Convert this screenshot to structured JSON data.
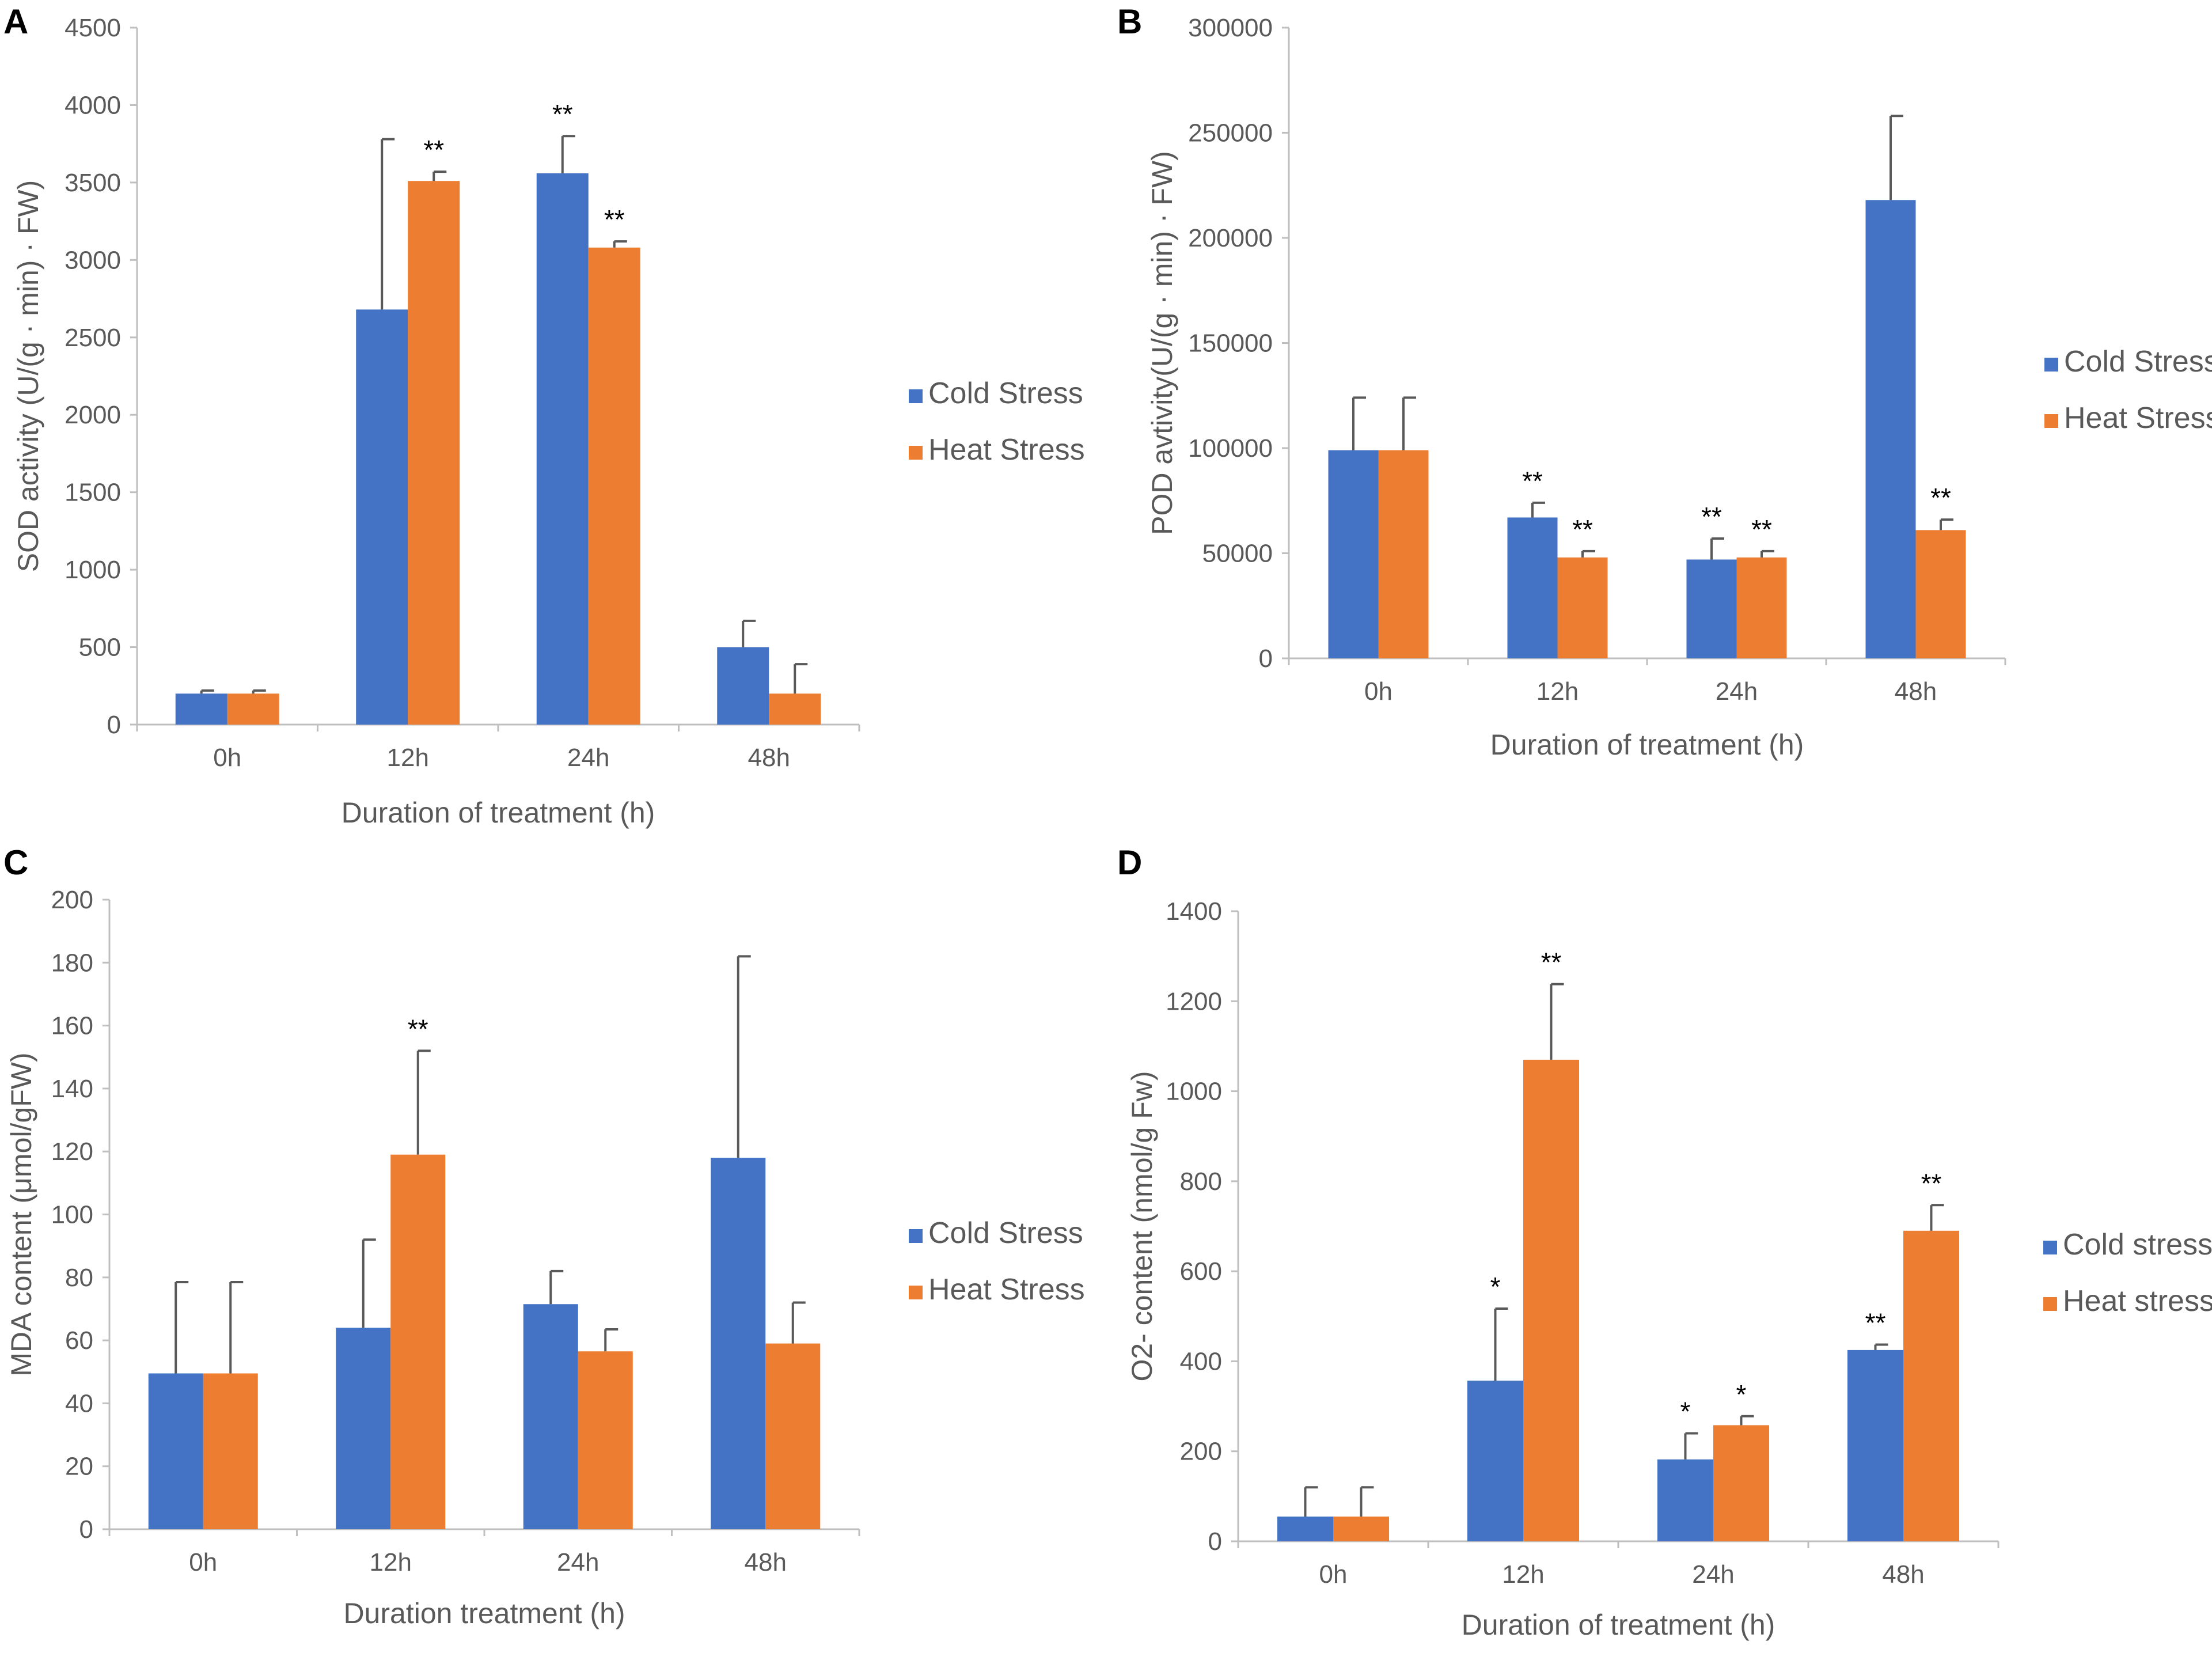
{
  "colors": {
    "cold": "#4472C4",
    "heat": "#ED7D31",
    "axis": "#BFBFBF",
    "error": "#595959"
  },
  "chart_data": [
    {
      "type": "bar",
      "panel": "A",
      "categories": [
        "0h",
        "12h",
        "24h",
        "48h"
      ],
      "series": [
        {
          "name": "Cold Stress",
          "values": [
            200,
            2680,
            3560,
            500
          ],
          "errors": [
            20,
            1100,
            240,
            170
          ],
          "sig": [
            "",
            "",
            "**",
            ""
          ]
        },
        {
          "name": "Heat Stress",
          "values": [
            200,
            3510,
            3080,
            200
          ],
          "errors": [
            20,
            60,
            40,
            190
          ],
          "sig": [
            "",
            "**",
            "**",
            ""
          ]
        }
      ],
      "xlabel": "Duration of treatment (h)",
      "ylabel": "SOD activity  (U/(g · min) · FW)",
      "ylim": [
        0,
        4500
      ],
      "yticks": [
        0,
        500,
        1000,
        1500,
        2000,
        2500,
        3000,
        3500,
        4000,
        4500
      ],
      "ytick_labels": [
        "0",
        "500",
        "1000",
        "1500",
        "2000",
        "2500",
        "3000",
        "3500",
        "4000",
        "4500"
      ]
    },
    {
      "type": "bar",
      "panel": "B",
      "categories": [
        "0h",
        "12h",
        "24h",
        "48h"
      ],
      "series": [
        {
          "name": "Cold Stress",
          "values": [
            99000,
            67000,
            47000,
            218000
          ],
          "errors": [
            25000,
            7000,
            10000,
            40000
          ],
          "sig": [
            "",
            "**",
            "**",
            ""
          ]
        },
        {
          "name": "Heat Stress",
          "values": [
            99000,
            48000,
            48000,
            61000
          ],
          "errors": [
            25000,
            3000,
            3000,
            5000
          ],
          "sig": [
            "",
            "**",
            "**",
            "**"
          ]
        }
      ],
      "xlabel": "Duration of treatment (h)",
      "ylabel": "POD avtivity(U/(g · min) · FW)",
      "ylim": [
        0,
        300000
      ],
      "yticks": [
        0,
        50000,
        100000,
        150000,
        200000,
        250000,
        300000
      ],
      "ytick_labels": [
        "0",
        "50000",
        "100000",
        "150000",
        "200000",
        "250000",
        "300000"
      ]
    },
    {
      "type": "bar",
      "panel": "C",
      "categories": [
        "0h",
        "12h",
        "24h",
        "48h"
      ],
      "series": [
        {
          "name": "Cold Stress",
          "values": [
            49.5,
            64,
            71.5,
            118
          ],
          "errors": [
            29,
            28,
            10.5,
            64
          ],
          "sig": [
            "",
            "",
            "",
            ""
          ]
        },
        {
          "name": "Heat Stress",
          "values": [
            49.5,
            119,
            56.5,
            59
          ],
          "errors": [
            29,
            33,
            7,
            13
          ],
          "sig": [
            "",
            "**",
            "",
            ""
          ]
        }
      ],
      "xlabel": "Duration treatment (h)",
      "ylabel": "MDA content (μmol/gFW)",
      "ylim": [
        0,
        200
      ],
      "yticks": [
        0,
        20,
        40,
        60,
        80,
        100,
        120,
        140,
        160,
        180,
        200
      ],
      "ytick_labels": [
        "0",
        "20",
        "40",
        "60",
        "80",
        "100",
        "120",
        "140",
        "160",
        "180",
        "200"
      ]
    },
    {
      "type": "bar",
      "panel": "D",
      "categories": [
        "0h",
        "12h",
        "24h",
        "48h"
      ],
      "series": [
        {
          "name": "Cold stress",
          "values": [
            55,
            357,
            182,
            425
          ],
          "errors": [
            65,
            160,
            58,
            12
          ],
          "sig": [
            "",
            "*",
            "*",
            "**"
          ]
        },
        {
          "name": "Heat stress",
          "values": [
            55,
            1070,
            258,
            690
          ],
          "errors": [
            65,
            168,
            20,
            57
          ],
          "sig": [
            "",
            "**",
            "*",
            "**"
          ]
        }
      ],
      "xlabel": "Duration of treatment (h)",
      "ylabel": "O2- content (nmol/g Fw)",
      "ylim": [
        0,
        1400
      ],
      "yticks": [
        0,
        200,
        400,
        600,
        800,
        1000,
        1200,
        1400
      ],
      "ytick_labels": [
        "0",
        "200",
        "400",
        "600",
        "800",
        "1000",
        "1200",
        "1400"
      ]
    }
  ]
}
